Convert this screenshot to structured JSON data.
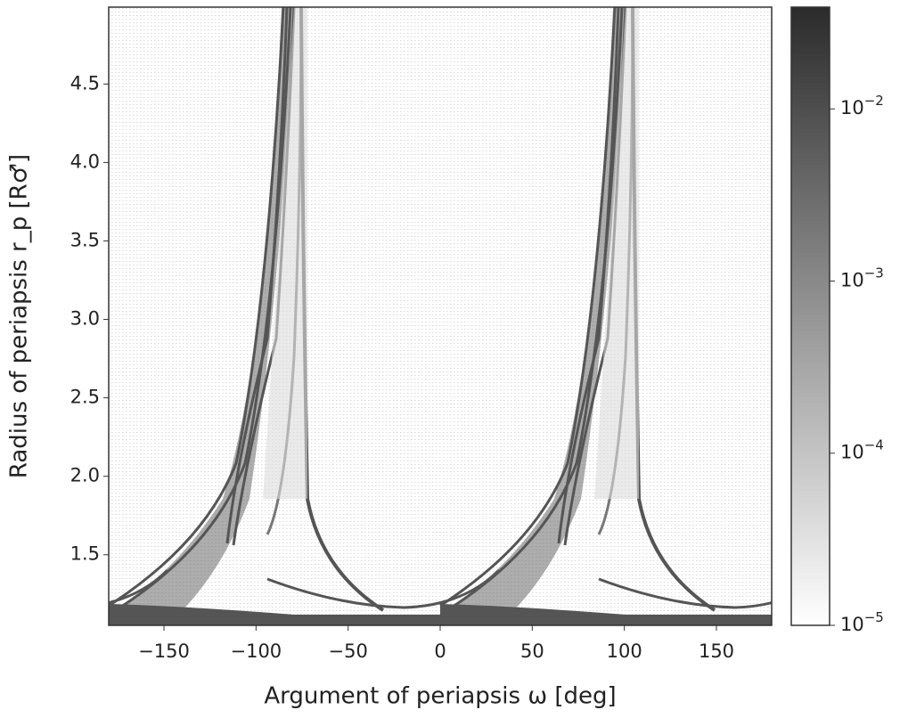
{
  "chart_data": {
    "type": "heatmap",
    "x_label": "Argument of periapsis ω [deg]",
    "y_label": "Radius of periapsis r_p [R♂]",
    "xlim": [
      -180,
      180
    ],
    "xticks": [
      {
        "value": -150,
        "label": "−150"
      },
      {
        "value": -100,
        "label": "−100"
      },
      {
        "value": -50,
        "label": "−50"
      },
      0,
      50,
      100,
      150
    ],
    "ylim": [
      1.05,
      4.99
    ],
    "yticks": [
      1.5,
      2.0,
      2.5,
      3.0,
      3.5,
      4.0,
      4.5
    ],
    "colorbar": {
      "scale": "log",
      "clim": [
        1e-05,
        0.039
      ],
      "ticks": [
        {
          "value": 1e-05,
          "label": "10−5"
        },
        {
          "value": 0.0001,
          "label": "10−4"
        },
        {
          "value": 0.001,
          "label": "10−3"
        },
        {
          "value": 0.01,
          "label": "10−2"
        }
      ],
      "colors": [
        "#ffffff",
        "#2b2b2b"
      ]
    }
  }
}
